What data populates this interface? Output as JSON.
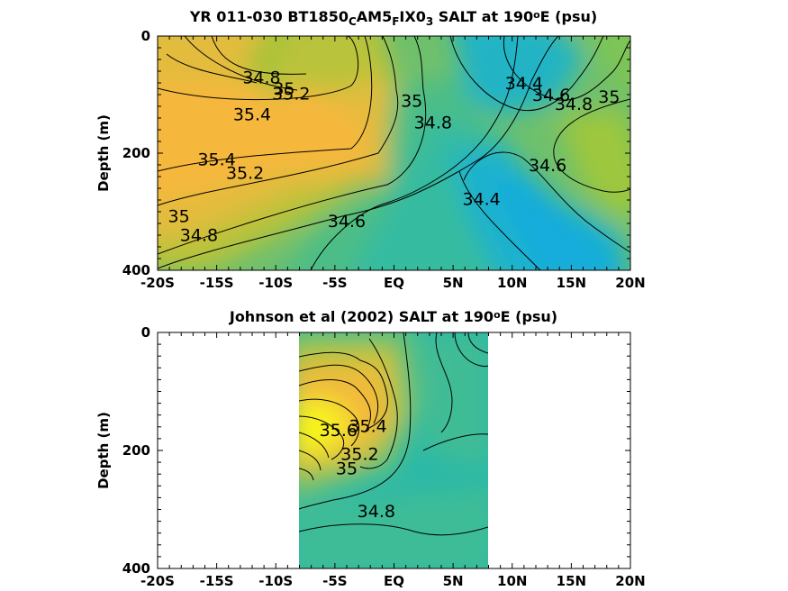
{
  "colors": {
    "deep_yellow": "#f5f50f",
    "orange": "#f6b73c",
    "yellow_green": "#a6c737",
    "green": "#5fbf77",
    "teal": "#2ab9a9",
    "cyan": "#16aee0"
  },
  "chart_data": [
    {
      "type": "heatmap",
      "subtype": "contour",
      "title": {
        "part1": "YR 011-030 BT1850",
        "sub1": "C",
        "part2": "AM5",
        "sub2": "F",
        "part3": "IX0",
        "sub3": "3",
        "part4": " SALT at 190",
        "sup": "o",
        "part5": "E (psu)"
      },
      "xlabel": "",
      "ylabel": "Depth (m)",
      "xlim": [
        -20,
        20
      ],
      "ylim": [
        400,
        0
      ],
      "x_ticks": [
        -20,
        -15,
        -10,
        -5,
        0,
        5,
        10,
        15,
        20
      ],
      "x_tick_labels": [
        "-20S",
        "-15S",
        "-10S",
        "-5S",
        "EQ",
        "5N",
        "10N",
        "15N",
        "20N"
      ],
      "y_ticks": [
        0,
        200,
        400
      ],
      "y_tick_labels": [
        "0",
        "200",
        "400"
      ],
      "contour_labels": [
        {
          "text": "34.8",
          "x": -11.2,
          "y": 70
        },
        {
          "text": "35",
          "x": -9.3,
          "y": 89
        },
        {
          "text": "35.2",
          "x": -8.7,
          "y": 98
        },
        {
          "text": "35.4",
          "x": -12.0,
          "y": 133
        },
        {
          "text": "35.4",
          "x": -15.0,
          "y": 210
        },
        {
          "text": "35.2",
          "x": -12.6,
          "y": 233
        },
        {
          "text": "35",
          "x": -18.2,
          "y": 307
        },
        {
          "text": "34.8",
          "x": -16.5,
          "y": 339
        },
        {
          "text": "34.6",
          "x": -4.0,
          "y": 315
        },
        {
          "text": "35",
          "x": 1.5,
          "y": 110
        },
        {
          "text": "34.8",
          "x": 3.3,
          "y": 147
        },
        {
          "text": "34.4",
          "x": 11.0,
          "y": 80
        },
        {
          "text": "34.6",
          "x": 13.3,
          "y": 100
        },
        {
          "text": "34.8",
          "x": 15.2,
          "y": 115
        },
        {
          "text": "35",
          "x": 18.2,
          "y": 103
        },
        {
          "text": "34.6",
          "x": 13.0,
          "y": 220
        },
        {
          "text": "34.4",
          "x": 7.4,
          "y": 278
        }
      ],
      "grid": false,
      "colormap": "parula"
    },
    {
      "type": "heatmap",
      "subtype": "contour",
      "title": {
        "part1": "Johnson et al (2002) SALT at 190",
        "sup": "o",
        "part2": "E (psu)"
      },
      "xlabel": "",
      "ylabel": "Depth (m)",
      "xlim": [
        -20,
        20
      ],
      "ylim": [
        400,
        0
      ],
      "data_x_range": [
        -8,
        8
      ],
      "x_ticks": [
        -20,
        -15,
        -10,
        -5,
        0,
        5,
        10,
        15,
        20
      ],
      "x_tick_labels": [
        "-20S",
        "-15S",
        "-10S",
        "-5S",
        "EQ",
        "5N",
        "10N",
        "15N",
        "20N"
      ],
      "y_ticks": [
        0,
        200,
        400
      ],
      "y_tick_labels": [
        "0",
        "200",
        "400"
      ],
      "contour_labels": [
        {
          "text": "35.4",
          "x": -2.2,
          "y": 158
        },
        {
          "text": "35.6",
          "x": -4.7,
          "y": 165
        },
        {
          "text": "35.2",
          "x": -2.9,
          "y": 205
        },
        {
          "text": "35",
          "x": -4.0,
          "y": 230
        },
        {
          "text": "34.8",
          "x": -1.5,
          "y": 302
        }
      ],
      "grid": false,
      "colormap": "parula"
    }
  ]
}
